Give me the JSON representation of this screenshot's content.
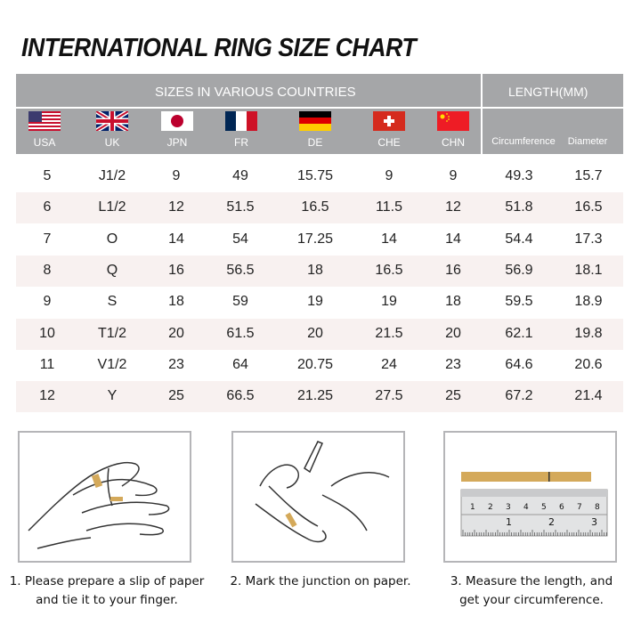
{
  "title": "INTERNATIONAL RING SIZE CHART",
  "header": {
    "sizes_label": "SIZES IN VARIOUS COUNTRIES",
    "length_label": "LENGTH(MM)",
    "columns": [
      "USA",
      "UK",
      "JPN",
      "FR",
      "DE",
      "CHE",
      "CHN",
      "Circumference",
      "Diameter"
    ],
    "flags": [
      "us-flag",
      "uk-flag",
      "japan-flag",
      "france-flag",
      "germany-flag",
      "switzerland-flag",
      "china-flag"
    ]
  },
  "rows": [
    [
      "5",
      "J1/2",
      "9",
      "49",
      "15.75",
      "9",
      "9",
      "49.3",
      "15.7"
    ],
    [
      "6",
      "L1/2",
      "12",
      "51.5",
      "16.5",
      "11.5",
      "12",
      "51.8",
      "16.5"
    ],
    [
      "7",
      "O",
      "14",
      "54",
      "17.25",
      "14",
      "14",
      "54.4",
      "17.3"
    ],
    [
      "8",
      "Q",
      "16",
      "56.5",
      "18",
      "16.5",
      "16",
      "56.9",
      "18.1"
    ],
    [
      "9",
      "S",
      "18",
      "59",
      "19",
      "19",
      "18",
      "59.5",
      "18.9"
    ],
    [
      "10",
      "T1/2",
      "20",
      "61.5",
      "20",
      "21.5",
      "20",
      "62.1",
      "19.8"
    ],
    [
      "11",
      "V1/2",
      "23",
      "64",
      "20.75",
      "24",
      "23",
      "64.6",
      "20.6"
    ],
    [
      "12",
      "Y",
      "25",
      "66.5",
      "21.25",
      "27.5",
      "25",
      "67.2",
      "21.4"
    ]
  ],
  "steps": [
    {
      "line1": "1. Please prepare a slip of paper",
      "line2": "and tie it to your finger."
    },
    {
      "line1": "2. Mark the junction on paper.",
      "line2": ""
    },
    {
      "line1": "3. Measure the length, and",
      "line2": "get your circumference."
    }
  ],
  "ruler": {
    "top_marks": [
      "1",
      "2",
      "3",
      "4",
      "5",
      "6",
      "7",
      "8"
    ],
    "bottom_marks": [
      "1",
      "2",
      "3"
    ],
    "unit": "mm"
  },
  "colors": {
    "header": "#a5a6a8",
    "alt_row": "#f8f1f0",
    "paper": "#d4a95a"
  }
}
